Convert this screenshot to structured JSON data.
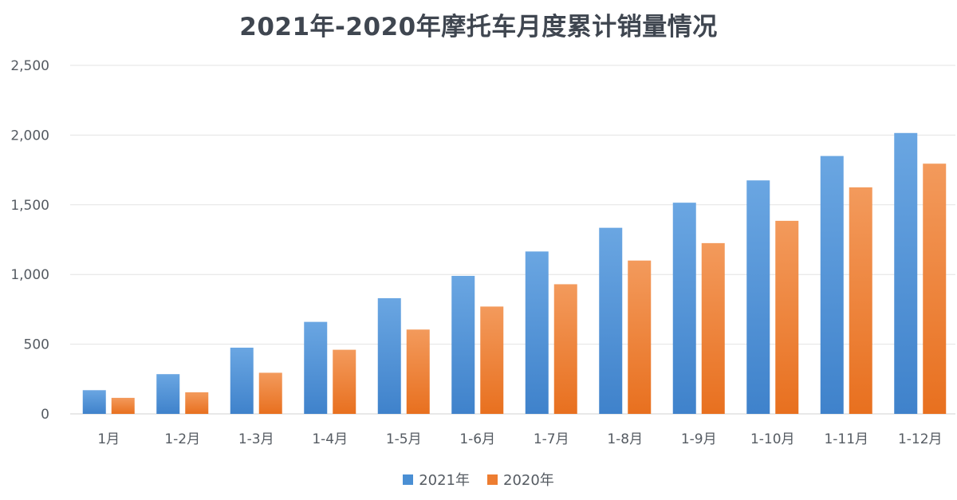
{
  "chart_data": {
    "type": "bar",
    "title": "2021年-2020年摩托车月度累计销量情况",
    "xlabel": "",
    "ylabel": "",
    "categories": [
      "1月",
      "1-2月",
      "1-3月",
      "1-4月",
      "1-5月",
      "1-6月",
      "1-7月",
      "1-8月",
      "1-9月",
      "1-10月",
      "1-11月",
      "1-12月"
    ],
    "series": [
      {
        "name": "2021年",
        "color": "#4a8fd4",
        "values": [
          170,
          285,
          475,
          660,
          830,
          990,
          1165,
          1335,
          1515,
          1675,
          1850,
          2015
        ]
      },
      {
        "name": "2020年",
        "color": "#ed7d31",
        "values": [
          115,
          155,
          295,
          460,
          605,
          770,
          930,
          1100,
          1225,
          1385,
          1625,
          1795
        ]
      }
    ],
    "ylim": [
      0,
      2500
    ],
    "yticks": [
      "0",
      "500",
      "1,000",
      "1,500",
      "2,000",
      "2,500"
    ],
    "ytick_values": [
      0,
      500,
      1000,
      1500,
      2000,
      2500
    ],
    "grid": true,
    "legend_position": "bottom"
  }
}
